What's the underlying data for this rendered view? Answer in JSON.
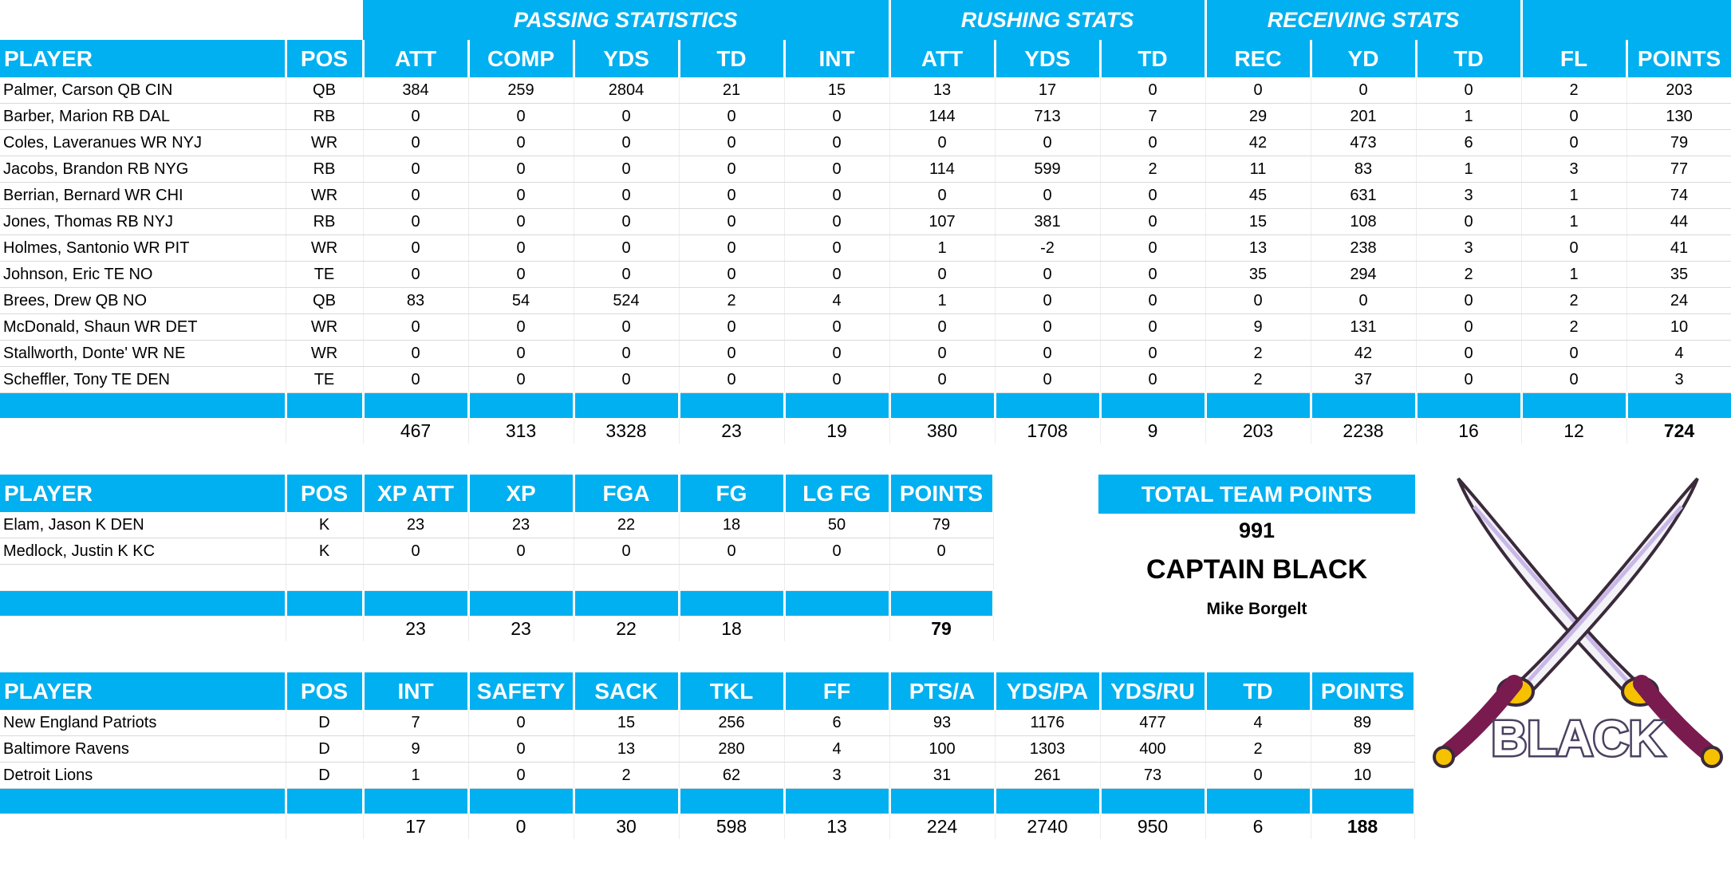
{
  "offense": {
    "group_headers": {
      "passing": "PASSING STATISTICS",
      "rushing": "RUSHING STATS",
      "receiving": "RECEIVING STATS"
    },
    "columns": [
      "PLAYER",
      "POS",
      "ATT",
      "COMP",
      "YDS",
      "TD",
      "INT",
      "ATT",
      "YDS",
      "TD",
      "REC",
      "YD",
      "TD",
      "FL",
      "POINTS"
    ],
    "rows": [
      [
        "Palmer, Carson QB CIN",
        "QB",
        "384",
        "259",
        "2804",
        "21",
        "15",
        "13",
        "17",
        "0",
        "0",
        "0",
        "0",
        "2",
        "203"
      ],
      [
        "Barber, Marion RB DAL",
        "RB",
        "0",
        "0",
        "0",
        "0",
        "0",
        "144",
        "713",
        "7",
        "29",
        "201",
        "1",
        "0",
        "130"
      ],
      [
        "Coles, Laveranues WR NYJ",
        "WR",
        "0",
        "0",
        "0",
        "0",
        "0",
        "0",
        "0",
        "0",
        "42",
        "473",
        "6",
        "0",
        "79"
      ],
      [
        "Jacobs, Brandon RB NYG",
        "RB",
        "0",
        "0",
        "0",
        "0",
        "0",
        "114",
        "599",
        "2",
        "11",
        "83",
        "1",
        "3",
        "77"
      ],
      [
        "Berrian, Bernard WR CHI",
        "WR",
        "0",
        "0",
        "0",
        "0",
        "0",
        "0",
        "0",
        "0",
        "45",
        "631",
        "3",
        "1",
        "74"
      ],
      [
        "Jones, Thomas RB NYJ",
        "RB",
        "0",
        "0",
        "0",
        "0",
        "0",
        "107",
        "381",
        "0",
        "15",
        "108",
        "0",
        "1",
        "44"
      ],
      [
        "Holmes, Santonio WR PIT",
        "WR",
        "0",
        "0",
        "0",
        "0",
        "0",
        "1",
        "-2",
        "0",
        "13",
        "238",
        "3",
        "0",
        "41"
      ],
      [
        "Johnson, Eric TE NO",
        "TE",
        "0",
        "0",
        "0",
        "0",
        "0",
        "0",
        "0",
        "0",
        "35",
        "294",
        "2",
        "1",
        "35"
      ],
      [
        "Brees, Drew QB NO",
        "QB",
        "83",
        "54",
        "524",
        "2",
        "4",
        "1",
        "0",
        "0",
        "0",
        "0",
        "0",
        "2",
        "24"
      ],
      [
        "McDonald, Shaun WR DET",
        "WR",
        "0",
        "0",
        "0",
        "0",
        "0",
        "0",
        "0",
        "0",
        "9",
        "131",
        "0",
        "2",
        "10"
      ],
      [
        "Stallworth, Donte' WR NE",
        "WR",
        "0",
        "0",
        "0",
        "0",
        "0",
        "0",
        "0",
        "0",
        "2",
        "42",
        "0",
        "0",
        "4"
      ],
      [
        "Scheffler, Tony TE DEN",
        "TE",
        "0",
        "0",
        "0",
        "0",
        "0",
        "0",
        "0",
        "0",
        "2",
        "37",
        "0",
        "0",
        "3"
      ]
    ],
    "totals": [
      "",
      "",
      "467",
      "313",
      "3328",
      "23",
      "19",
      "380",
      "1708",
      "9",
      "203",
      "2238",
      "16",
      "12",
      "724"
    ]
  },
  "kickers": {
    "columns": [
      "PLAYER",
      "POS",
      "XP ATT",
      "XP",
      "FGA",
      "FG",
      "LG FG",
      "POINTS"
    ],
    "rows": [
      [
        "Elam, Jason K DEN",
        "K",
        "23",
        "23",
        "22",
        "18",
        "50",
        "79"
      ],
      [
        "Medlock, Justin K KC",
        "K",
        "0",
        "0",
        "0",
        "0",
        "0",
        "0"
      ]
    ],
    "totals": [
      "",
      "",
      "23",
      "23",
      "22",
      "18",
      "",
      "79"
    ]
  },
  "defense": {
    "columns": [
      "PLAYER",
      "POS",
      "INT",
      "SAFETY",
      "SACK",
      "TKL",
      "FF",
      "PTS/A",
      "YDS/PA",
      "YDS/RU",
      "TD",
      "POINTS"
    ],
    "rows": [
      [
        "New England Patriots",
        "D",
        "7",
        "0",
        "15",
        "256",
        "6",
        "93",
        "1176",
        "477",
        "4",
        "89"
      ],
      [
        "Baltimore Ravens",
        "D",
        "9",
        "0",
        "13",
        "280",
        "4",
        "100",
        "1303",
        "400",
        "2",
        "89"
      ],
      [
        "Detroit Lions",
        "D",
        "1",
        "0",
        "2",
        "62",
        "3",
        "31",
        "261",
        "73",
        "0",
        "10"
      ]
    ],
    "totals": [
      "",
      "",
      "17",
      "0",
      "30",
      "598",
      "13",
      "224",
      "2740",
      "950",
      "6",
      "188"
    ]
  },
  "team": {
    "header": "TOTAL TEAM POINTS",
    "points": "991",
    "name": "CAPTAIN BLACK",
    "owner": "Mike Borgelt",
    "logo_text": "BLACK"
  },
  "colors": {
    "accent": "#00b0f0"
  }
}
